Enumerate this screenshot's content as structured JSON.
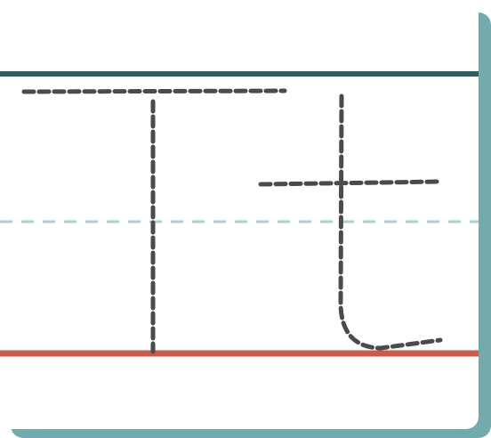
{
  "worksheet": {
    "letters": [
      "T",
      "t"
    ],
    "colors": {
      "background": "#ffffff",
      "frame_shadow": "#71abab",
      "top_line": "#2e5e5d",
      "mid_line": "#a8d0cf",
      "base_line": "#cd5a47",
      "trace_stroke": "#4b4b4b"
    }
  }
}
